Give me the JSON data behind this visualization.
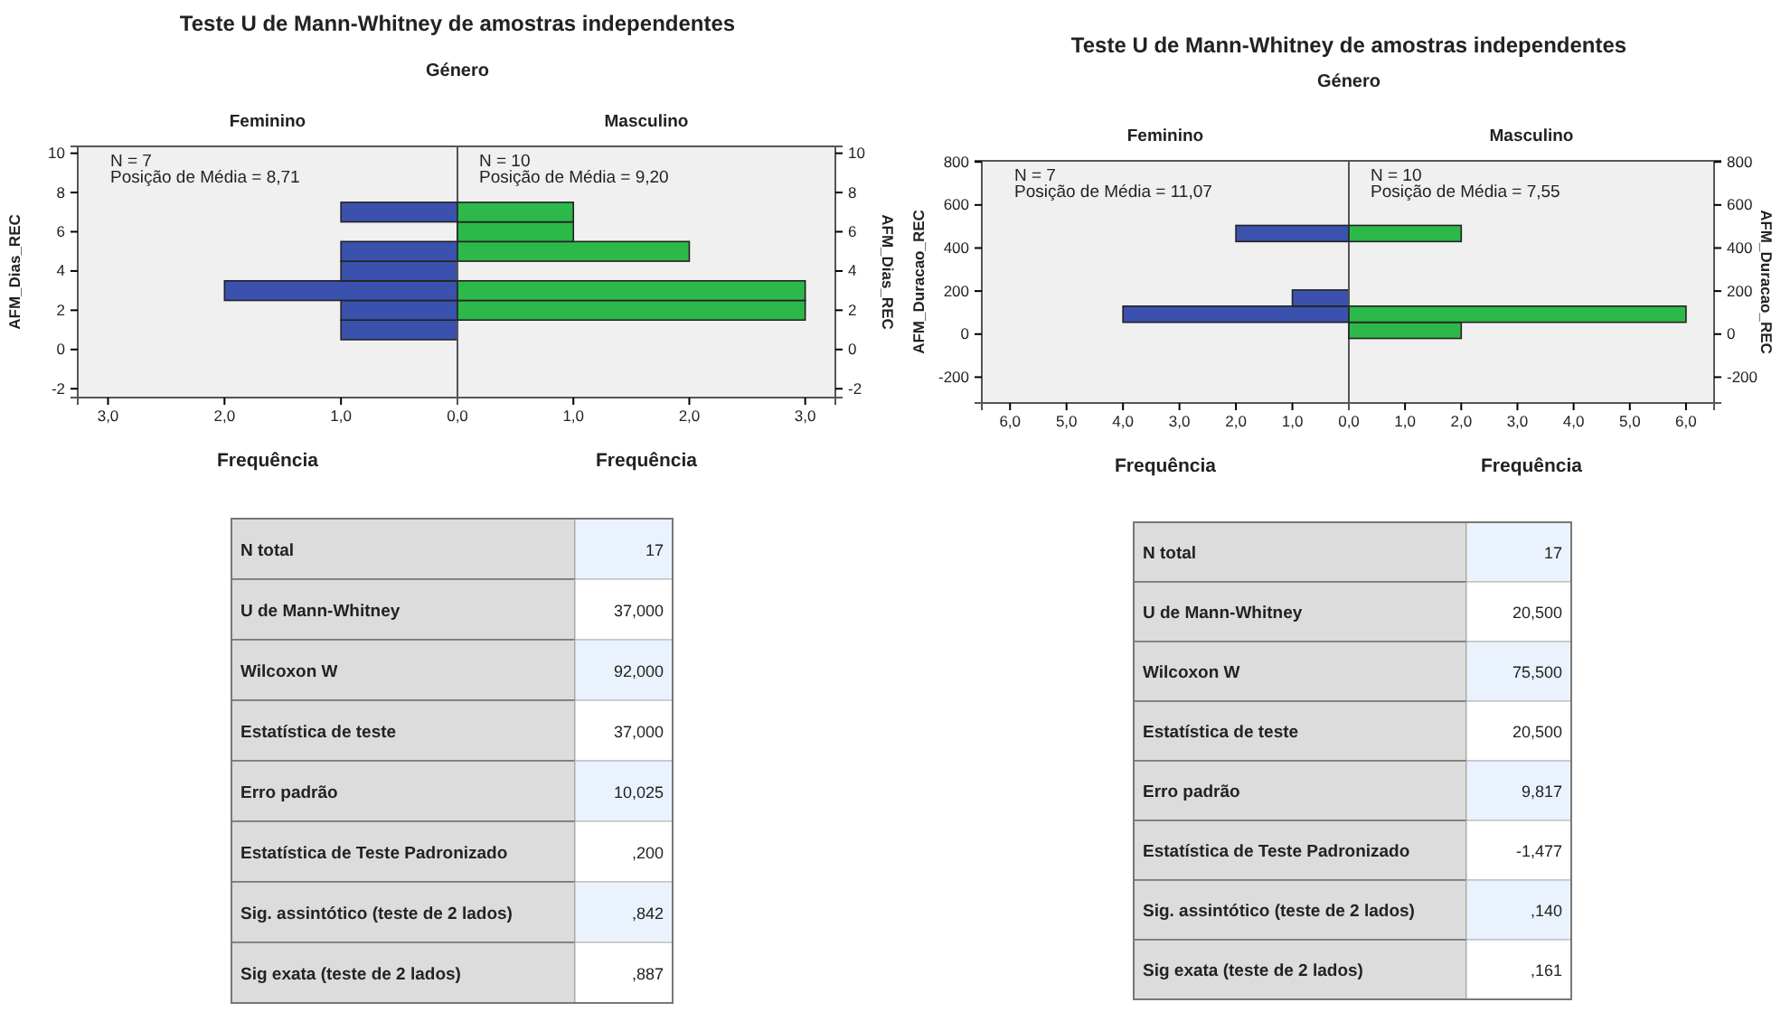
{
  "chart_data": [
    {
      "type": "other",
      "title": "Teste U de Mann-Whitney de amostras independentes",
      "subtitle": "Género"
    },
    {
      "type": "histogram",
      "title": "Feminino",
      "orientation": "horizontal",
      "xlabel": "Frequência",
      "ylabel": "AFM_Dias_REC",
      "bins": [
        0.5,
        1.5,
        2.5,
        3.5,
        4.5,
        5.5,
        6.5,
        7.5
      ],
      "color": "#3a52ae",
      "values": [
        1,
        1,
        2,
        1,
        1,
        0,
        1
      ],
      "xlim": [
        3.26,
        0
      ],
      "xticks": [
        {
          "value": 3,
          "label": "3,0"
        },
        {
          "value": 2,
          "label": "2,0"
        },
        {
          "value": 1,
          "label": "1,0"
        },
        {
          "value": 0,
          "label": "0,0"
        }
      ],
      "ylim": [
        -2.45,
        10.35
      ],
      "yticks": [
        -2,
        0,
        2,
        4,
        6,
        8,
        10
      ],
      "annotations": [
        "N = 7",
        "Posição de Média = 8,71"
      ]
    },
    {
      "type": "histogram",
      "title": "Masculino",
      "orientation": "horizontal",
      "xlabel": "Frequência",
      "ylabel": "AFM_Dias_REC",
      "bins": [
        0.5,
        1.5,
        2.5,
        3.5,
        4.5,
        5.5,
        6.5,
        7.5
      ],
      "color": "#2db84a",
      "values": [
        0,
        3,
        3,
        0,
        2,
        1,
        1
      ],
      "xlim": [
        0,
        3.26
      ],
      "xticks": [
        {
          "value": 1,
          "label": "1,0"
        },
        {
          "value": 2,
          "label": "2,0"
        },
        {
          "value": 3,
          "label": "3,0"
        }
      ],
      "ylim": [
        -2.45,
        10.35
      ],
      "yticks": [
        -2,
        0,
        2,
        4,
        6,
        8,
        10
      ],
      "annotations": [
        "N = 10",
        "Posição de Média = 9,20"
      ]
    },
    {
      "type": "other",
      "title": "Teste U de Mann-Whitney de amostras independentes",
      "subtitle": "Género"
    },
    {
      "type": "histogram",
      "title": "Feminino",
      "orientation": "horizontal",
      "xlabel": "Frequência",
      "ylabel": "AFM_Duracao_REC",
      "bins": [
        -20,
        55,
        130,
        205,
        280,
        355,
        430,
        505
      ],
      "color": "#3a52ae",
      "values": [
        0,
        4,
        1,
        0,
        0,
        0,
        2
      ],
      "xlim": [
        6.5,
        0
      ],
      "xticks": [
        {
          "value": 6,
          "label": "6,0"
        },
        {
          "value": 5,
          "label": "5,0"
        },
        {
          "value": 4,
          "label": "4,0"
        },
        {
          "value": 3,
          "label": "3,0"
        },
        {
          "value": 2,
          "label": "2,0"
        },
        {
          "value": 1,
          "label": "1,0"
        },
        {
          "value": 0,
          "label": "0,0"
        }
      ],
      "ylim": [
        -320,
        805
      ],
      "yticks": [
        -200,
        0,
        200,
        400,
        600,
        800
      ],
      "annotations": [
        "N = 7",
        "Posição de Média = 11,07"
      ]
    },
    {
      "type": "histogram",
      "title": "Masculino",
      "orientation": "horizontal",
      "xlabel": "Frequência",
      "ylabel": "AFM_Duracao_REC",
      "bins": [
        -20,
        55,
        130,
        205,
        280,
        355,
        430,
        505
      ],
      "color": "#2db84a",
      "values": [
        2,
        6,
        0,
        0,
        0,
        0,
        2
      ],
      "xlim": [
        0,
        6.5
      ],
      "xticks": [
        {
          "value": 1,
          "label": "1,0"
        },
        {
          "value": 2,
          "label": "2,0"
        },
        {
          "value": 3,
          "label": "3,0"
        },
        {
          "value": 4,
          "label": "4,0"
        },
        {
          "value": 5,
          "label": "5,0"
        },
        {
          "value": 6,
          "label": "6,0"
        }
      ],
      "ylim": [
        -320,
        805
      ],
      "yticks": [
        -200,
        0,
        200,
        400,
        600,
        800
      ],
      "annotations": [
        "N = 10",
        "Posição de Média = 7,55"
      ]
    },
    {
      "type": "other",
      "categories": [
        "N total",
        "U de Mann-Whitney",
        "Wilcoxon W",
        "Estatística de teste",
        "Erro padrão",
        "Estatística de Teste Padronizado",
        "Sig. assintótico (teste de 2 lados)",
        "Sig exata (teste de 2 lados)"
      ],
      "annotations": [
        "17",
        "37,000",
        "92,000",
        "37,000",
        "10,025",
        ",200",
        ",842",
        ",887"
      ]
    },
    {
      "type": "other",
      "categories": [
        "N total",
        "U de Mann-Whitney",
        "Wilcoxon W",
        "Estatística de teste",
        "Erro padrão",
        "Estatística de Teste Padronizado",
        "Sig. assintótico (teste de 2 lados)",
        "Sig exata (teste de 2 lados)"
      ],
      "annotations": [
        "17",
        "20,500",
        "75,500",
        "20,500",
        "9,817",
        "-1,477",
        ",140",
        ",161"
      ]
    }
  ]
}
